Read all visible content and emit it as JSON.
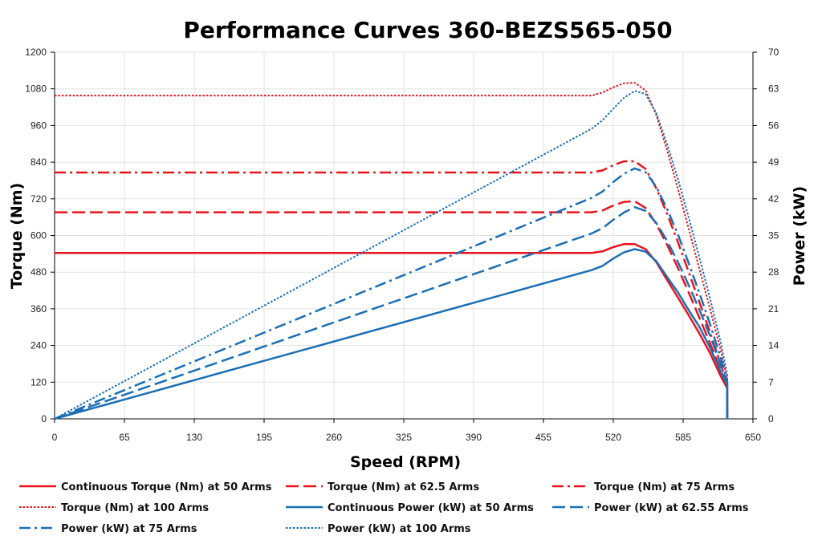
{
  "chart_data": {
    "type": "line",
    "title": "Performance Curves 360-BEZS565-050",
    "xlabel": "Speed (RPM)",
    "ylabel": "Torque (Nm)",
    "y2label": "Power (kW)",
    "xlim": [
      0,
      650
    ],
    "ylim": [
      0,
      1200
    ],
    "y2lim": [
      0,
      70
    ],
    "xticks": [
      "0",
      "65",
      "130",
      "195",
      "260",
      "325",
      "390",
      "455",
      "520",
      "585",
      "650"
    ],
    "yticks": [
      "0",
      "120",
      "240",
      "360",
      "480",
      "600",
      "720",
      "840",
      "960",
      "1080",
      "1200"
    ],
    "y2ticks": [
      "0",
      "7",
      "14",
      "21",
      "28",
      "35",
      "42",
      "49",
      "56",
      "63",
      "70"
    ],
    "grid": true,
    "legend_position": "bottom",
    "colors": {
      "red": "#e8141c",
      "blue": "#1b6fb5"
    },
    "series": [
      {
        "name": "Continuous Torque (Nm) at 50 Arms",
        "axis": "left",
        "color": "#e8141c",
        "dash": "solid",
        "x": [
          0,
          500,
          510,
          520,
          530,
          540,
          550,
          560,
          570,
          580,
          590,
          600,
          610,
          620,
          626,
          626
        ],
        "y": [
          543,
          543,
          548,
          562,
          572,
          572,
          555,
          513,
          455,
          398,
          340,
          280,
          215,
          140,
          100,
          0
        ]
      },
      {
        "name": "Torque (Nm) at 62.5 Arms",
        "axis": "left",
        "color": "#e8141c",
        "dash": "dash",
        "x": [
          0,
          500,
          510,
          520,
          530,
          540,
          550,
          560,
          570,
          580,
          590,
          600,
          610,
          620,
          626,
          626
        ],
        "y": [
          676,
          676,
          682,
          698,
          710,
          712,
          690,
          638,
          570,
          495,
          415,
          332,
          248,
          160,
          105,
          0
        ]
      },
      {
        "name": "Torque (Nm) at 75 Arms",
        "axis": "left",
        "color": "#e8141c",
        "dash": "dashdot",
        "x": [
          0,
          500,
          510,
          520,
          530,
          540,
          550,
          560,
          570,
          580,
          590,
          600,
          610,
          620,
          626,
          626
        ],
        "y": [
          806,
          806,
          813,
          830,
          843,
          843,
          818,
          755,
          672,
          580,
          482,
          383,
          283,
          180,
          110,
          0
        ]
      },
      {
        "name": "Torque (Nm) at 100 Arms",
        "axis": "left",
        "color": "#e8141c",
        "dash": "dot",
        "x": [
          0,
          500,
          510,
          520,
          530,
          540,
          550,
          560,
          570,
          580,
          590,
          600,
          610,
          620,
          626,
          626
        ],
        "y": [
          1058,
          1058,
          1068,
          1085,
          1098,
          1100,
          1075,
          995,
          880,
          755,
          625,
          492,
          360,
          225,
          130,
          0
        ]
      },
      {
        "name": "Continuous Power (kW) at 50 Arms",
        "axis": "right",
        "color": "#1b6fb5",
        "dash": "solid",
        "x": [
          0,
          500,
          510,
          520,
          530,
          540,
          550,
          560,
          570,
          580,
          590,
          600,
          610,
          620,
          626,
          626
        ],
        "y": [
          0,
          28.4,
          29.2,
          30.6,
          31.8,
          32.4,
          31.9,
          30.1,
          27.1,
          24.2,
          20.8,
          17.6,
          13.6,
          9.0,
          6.5,
          0
        ]
      },
      {
        "name": "Power (kW) at 62.55 Arms",
        "axis": "right",
        "color": "#1b6fb5",
        "dash": "dash",
        "x": [
          0,
          500,
          510,
          520,
          530,
          540,
          550,
          560,
          570,
          580,
          590,
          600,
          610,
          620,
          626,
          626
        ],
        "y": [
          0,
          35.4,
          36.4,
          38.0,
          39.4,
          40.4,
          39.7,
          37.4,
          34.0,
          30.0,
          25.6,
          20.9,
          15.9,
          10.4,
          6.9,
          0
        ]
      },
      {
        "name": "Power (kW) at 75 Arms",
        "axis": "right",
        "color": "#1b6fb5",
        "dash": "dashdot",
        "x": [
          0,
          500,
          510,
          520,
          530,
          540,
          550,
          560,
          570,
          580,
          590,
          600,
          610,
          620,
          626,
          626
        ],
        "y": [
          0,
          42.2,
          43.4,
          45.2,
          46.8,
          47.8,
          47.1,
          44.3,
          40.1,
          35.3,
          29.8,
          24.1,
          18.1,
          11.7,
          7.2,
          0
        ]
      },
      {
        "name": "Power (kW) at 100 Arms",
        "axis": "right",
        "color": "#1b6fb5",
        "dash": "dot",
        "x": [
          0,
          500,
          510,
          520,
          530,
          540,
          550,
          560,
          570,
          580,
          590,
          600,
          610,
          620,
          626,
          626
        ],
        "y": [
          0,
          55.4,
          57.0,
          59.2,
          61.3,
          62.6,
          62.0,
          58.4,
          52.5,
          45.9,
          38.6,
          30.9,
          23.0,
          14.6,
          8.5,
          0
        ]
      }
    ]
  }
}
